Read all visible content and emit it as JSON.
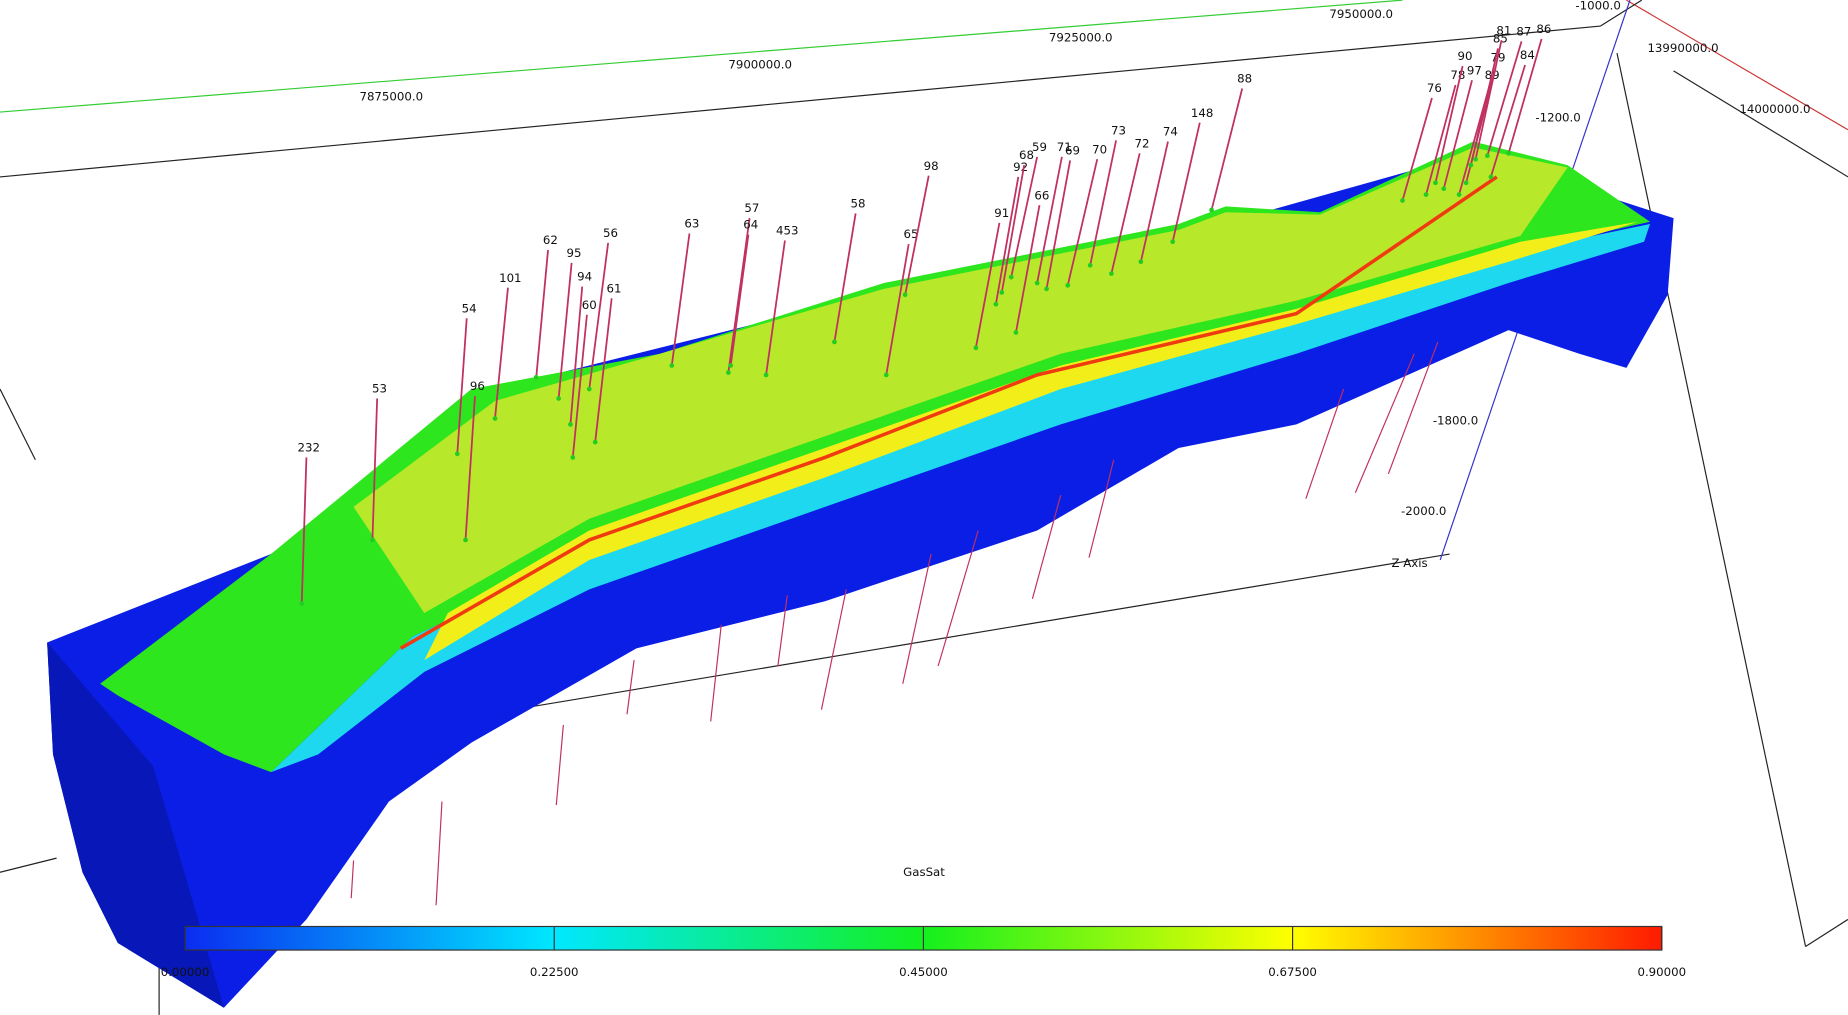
{
  "scene": {
    "axes": {
      "x_labels": [
        "7875000.0",
        "7900000.0",
        "7925000.0",
        "7950000.0"
      ],
      "y_labels": [
        "13990000.0",
        "14000000.0"
      ],
      "z_labels": [
        "-1000.0",
        "-1200.0",
        "-1800.0",
        "-2000.0"
      ],
      "z_title": "Z Axis"
    },
    "wells": [
      "232",
      "53",
      "54",
      "101",
      "96",
      "62",
      "95",
      "94",
      "60",
      "61",
      "56",
      "63",
      "57",
      "64",
      "453",
      "58",
      "65",
      "98",
      "91",
      "66",
      "92",
      "68",
      "59",
      "71",
      "69",
      "70",
      "73",
      "72",
      "74",
      "148",
      "88",
      "76",
      "78",
      "90",
      "97",
      "89",
      "79",
      "84",
      "85",
      "81",
      "87",
      "86"
    ],
    "colorbar": {
      "title": "GasSat",
      "ticks": [
        {
          "value": 0,
          "label": "0.00000"
        },
        {
          "value": 0.225,
          "label": "0.22500"
        },
        {
          "value": 0.45,
          "label": "0.45000"
        },
        {
          "value": 0.675,
          "label": "0.67500"
        },
        {
          "value": 0.9,
          "label": "0.90000"
        }
      ]
    }
  }
}
